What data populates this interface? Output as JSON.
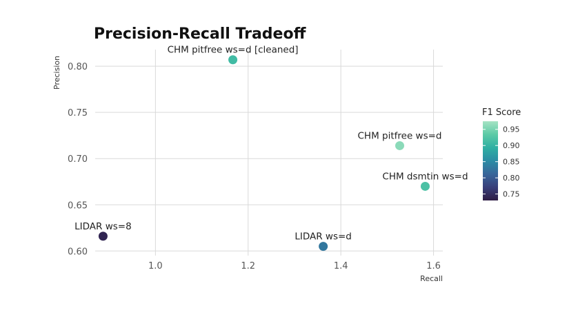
{
  "chart_data": {
    "type": "scatter",
    "title": "Precision-Recall Tradeoff",
    "xlabel": "Recall",
    "ylabel": "Precision",
    "xlim": [
      0.87,
      1.62
    ],
    "ylim": [
      0.595,
      0.818
    ],
    "xticks": [
      1.0,
      1.2,
      1.4,
      1.6
    ],
    "xtick_labels": [
      "1.0",
      "1.2",
      "1.4",
      "1.6"
    ],
    "yticks": [
      0.6,
      0.65,
      0.7,
      0.75,
      0.8
    ],
    "ytick_labels": [
      "0.60",
      "0.65",
      "0.70",
      "0.75",
      "0.80"
    ],
    "grid": true,
    "points": [
      {
        "label": "CHM pitfree ws=d [cleaned]",
        "x": 1.167,
        "y": 0.807,
        "f1": 0.91
      },
      {
        "label": "CHM pitfree ws=d",
        "x": 1.527,
        "y": 0.714,
        "f1": 0.96
      },
      {
        "label": "CHM dsmtin ws=d",
        "x": 1.582,
        "y": 0.67,
        "f1": 0.92
      },
      {
        "label": "LIDAR ws=8",
        "x": 0.887,
        "y": 0.616,
        "f1": 0.74
      },
      {
        "label": "LIDAR ws=d",
        "x": 1.362,
        "y": 0.605,
        "f1": 0.83
      }
    ],
    "legend": {
      "title": "F1 Score",
      "position": "right",
      "range": [
        0.73,
        0.975
      ],
      "ticks": [
        0.75,
        0.8,
        0.85,
        0.9,
        0.95
      ],
      "tick_labels": [
        "0.75",
        "0.80",
        "0.85",
        "0.90",
        "0.95"
      ],
      "colormap": [
        "#2f1d45",
        "#393f7a",
        "#38669a",
        "#2b8ca4",
        "#2fb0a3",
        "#5ccaa6",
        "#a6e4c4"
      ]
    }
  }
}
